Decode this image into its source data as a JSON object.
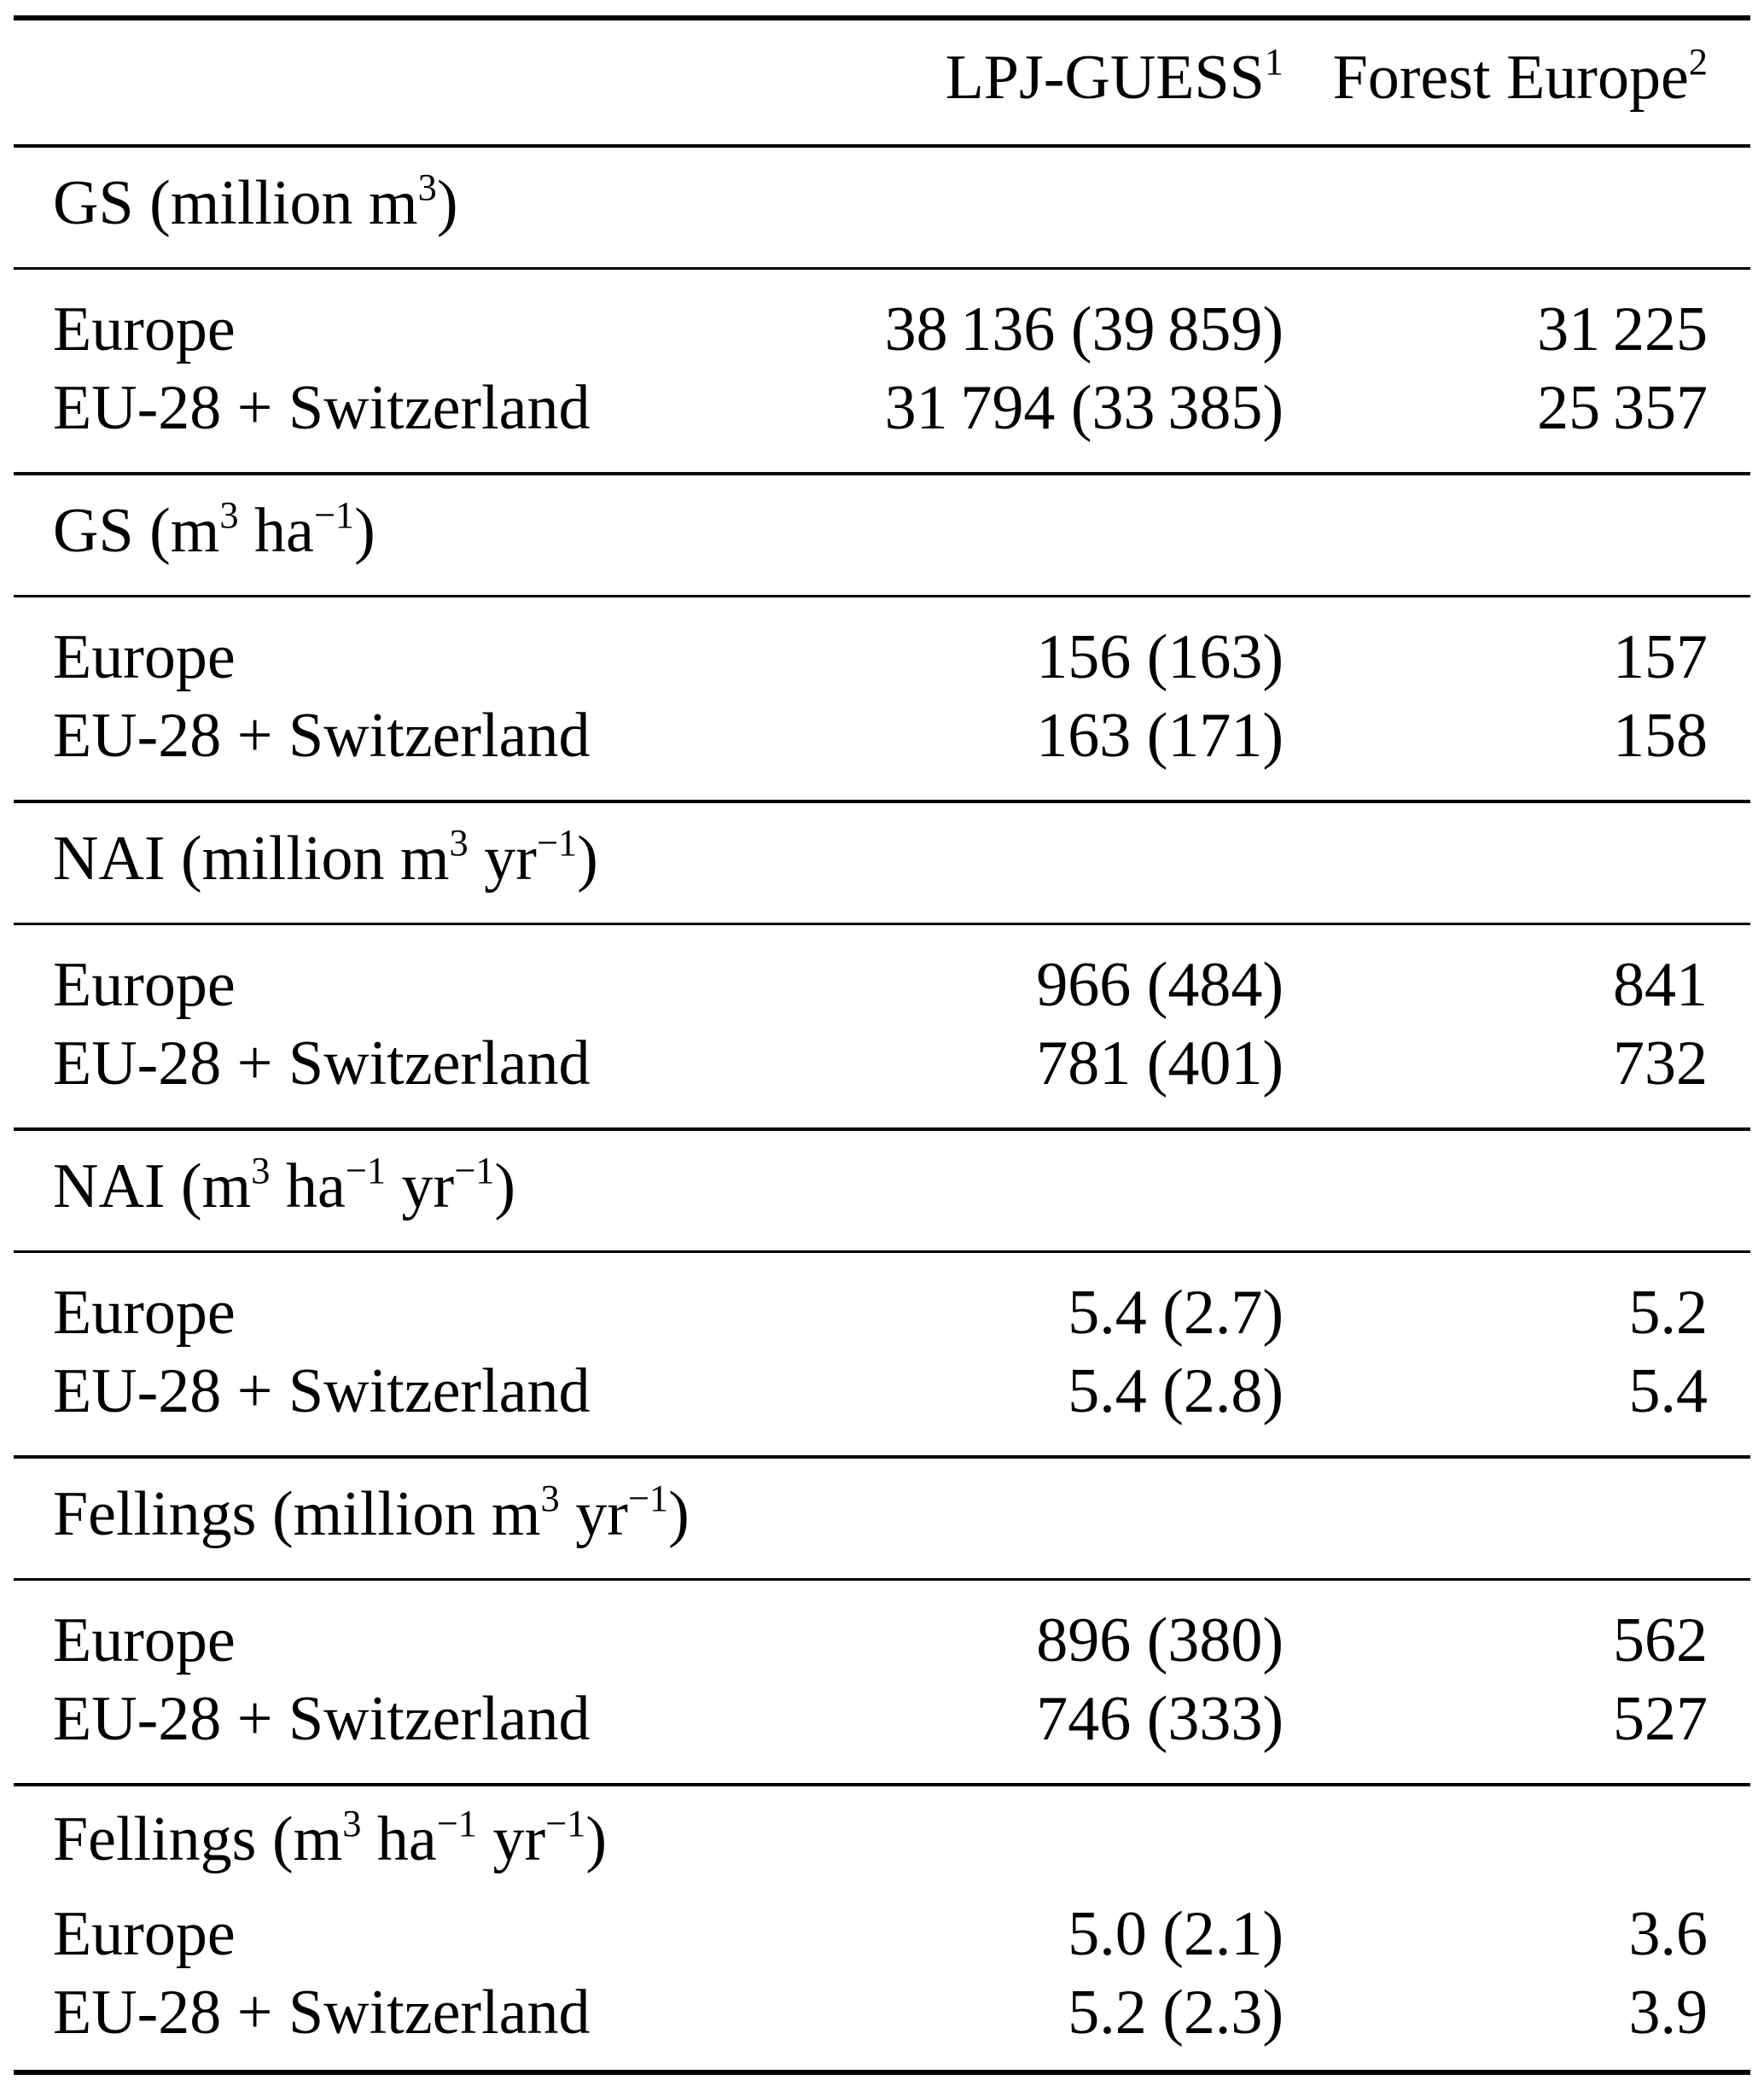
{
  "table": {
    "columns": {
      "label": "",
      "lpj_guess": "LPJ-GUESS^{1}",
      "forest_europe": "Forest Europe^{2}"
    },
    "sections": [
      {
        "title": "GS (million m^{3})",
        "rows": [
          {
            "label": "Europe",
            "lpj": "38 136 (39 859)",
            "forest": "31 225"
          },
          {
            "label": "EU-28 + Switzerland",
            "lpj": "31 794 (33 385)",
            "forest": "25 357"
          }
        ]
      },
      {
        "title": "GS (m^{3} ha^{−1})",
        "rows": [
          {
            "label": "Europe",
            "lpj": "156 (163)",
            "forest": "157"
          },
          {
            "label": "EU-28 + Switzerland",
            "lpj": "163 (171)",
            "forest": "158"
          }
        ]
      },
      {
        "title": "NAI (million m^{3} yr^{−1})",
        "rows": [
          {
            "label": "Europe",
            "lpj": "966 (484)",
            "forest": "841"
          },
          {
            "label": "EU-28 + Switzerland",
            "lpj": "781 (401)",
            "forest": "732"
          }
        ]
      },
      {
        "title": "NAI (m^{3} ha^{−1} yr^{−1})",
        "rows": [
          {
            "label": "Europe",
            "lpj": "5.4 (2.7)",
            "forest": "5.2"
          },
          {
            "label": "EU-28 + Switzerland",
            "lpj": "5.4 (2.8)",
            "forest": "5.4"
          }
        ]
      },
      {
        "title": "Fellings (million m^{3} yr^{−1})",
        "rows": [
          {
            "label": "Europe",
            "lpj": "896 (380)",
            "forest": "562"
          },
          {
            "label": "EU-28 + Switzerland",
            "lpj": "746 (333)",
            "forest": "527"
          }
        ]
      },
      {
        "title": "Fellings (m^{3} ha^{−1} yr^{−1})",
        "rows": [
          {
            "label": "Europe",
            "lpj": "5.0 (2.1)",
            "forest": "3.6"
          },
          {
            "label": "EU-28 + Switzerland",
            "lpj": "5.2 (2.3)",
            "forest": "3.9"
          }
        ]
      }
    ]
  }
}
